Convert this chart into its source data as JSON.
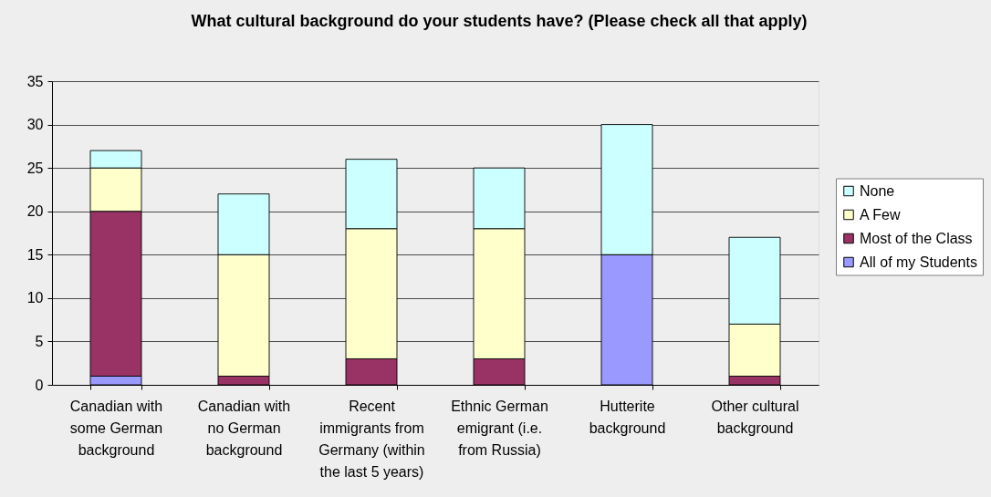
{
  "chart_data": {
    "type": "bar",
    "title": "What cultural background do your students have? (Please check all that apply)",
    "categories": [
      "Canadian with some German background",
      "Canadian with no German background",
      "Recent immigrants from Germany (within the last 5 years)",
      "Ethnic German emigrant (i.e. from Russia)",
      "Hutterite background",
      "Other cultural background"
    ],
    "series": [
      {
        "name": "All of my Students",
        "color": "#9999ff",
        "values": [
          1,
          0,
          0,
          0,
          15,
          0
        ]
      },
      {
        "name": "Most of the Class",
        "color": "#993366",
        "values": [
          19,
          1,
          3,
          3,
          0,
          1
        ]
      },
      {
        "name": "A Few",
        "color": "#ffffcc",
        "values": [
          5,
          14,
          15,
          15,
          0,
          6
        ]
      },
      {
        "name": "None",
        "color": "#ccffff",
        "values": [
          2,
          7,
          8,
          7,
          15,
          10
        ]
      }
    ],
    "stacked": true,
    "ylim": [
      0,
      35
    ],
    "yticks": [
      0,
      5,
      10,
      15,
      20,
      25,
      30,
      35
    ],
    "grid": "y",
    "legend": "right"
  }
}
